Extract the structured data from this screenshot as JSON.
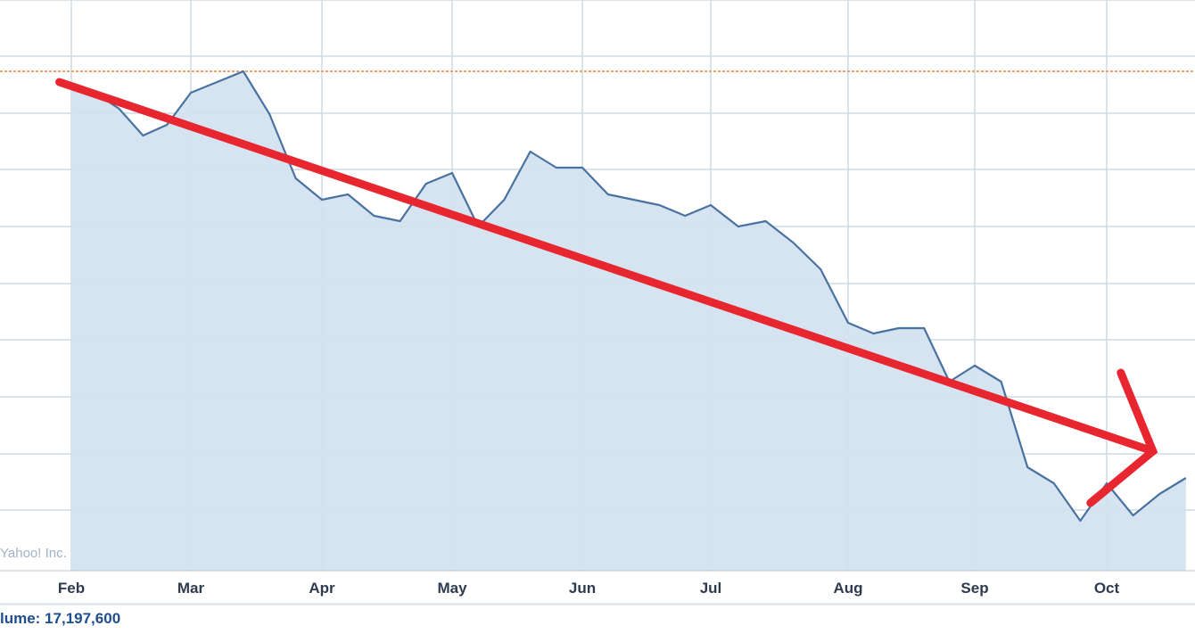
{
  "chart_data": {
    "type": "area",
    "x_ticks": [
      "Feb",
      "Mar",
      "Apr",
      "May",
      "Jun",
      "Jul",
      "Aug",
      "Sep",
      "Oct"
    ],
    "ylim": [
      0,
      1
    ],
    "grid": true,
    "reference_line_value": 0.9,
    "series": [
      {
        "x": [
          0.0,
          0.2,
          0.4,
          0.6,
          0.8,
          1.0,
          1.2,
          1.4,
          1.6,
          1.8,
          2.0,
          2.2,
          2.4,
          2.6,
          2.8,
          3.0,
          3.2,
          3.4,
          3.6,
          3.8,
          4.0,
          4.2,
          4.4,
          4.6,
          4.8,
          5.0,
          5.2,
          5.4,
          5.6,
          5.8,
          6.0,
          6.2,
          6.4,
          6.6,
          6.8,
          7.0,
          7.2,
          7.4,
          7.6,
          7.8,
          8.0,
          8.2,
          8.4,
          8.6
        ],
        "y": [
          0.87,
          0.86,
          0.83,
          0.78,
          0.8,
          0.86,
          0.88,
          0.9,
          0.82,
          0.7,
          0.66,
          0.67,
          0.63,
          0.62,
          0.69,
          0.71,
          0.61,
          0.66,
          0.75,
          0.72,
          0.72,
          0.67,
          0.66,
          0.65,
          0.63,
          0.65,
          0.61,
          0.62,
          0.58,
          0.53,
          0.43,
          0.41,
          0.42,
          0.42,
          0.32,
          0.35,
          0.32,
          0.16,
          0.13,
          0.06,
          0.13,
          0.07,
          0.11,
          0.14
        ]
      }
    ],
    "annotations": [
      {
        "type": "arrow",
        "color": "#e8262f",
        "direction": "down",
        "from": [
          -0.1,
          0.88
        ],
        "to": [
          8.35,
          0.19
        ]
      }
    ],
    "colors": {
      "line": "#4a72a0",
      "fill": "#d3e3ef",
      "reference_line": "#f0a070",
      "grid": "#cdd9e4",
      "arrow": "#e8262f"
    }
  },
  "watermark": "Yahoo! Inc.",
  "volume_text": "lume: 17,197,600"
}
